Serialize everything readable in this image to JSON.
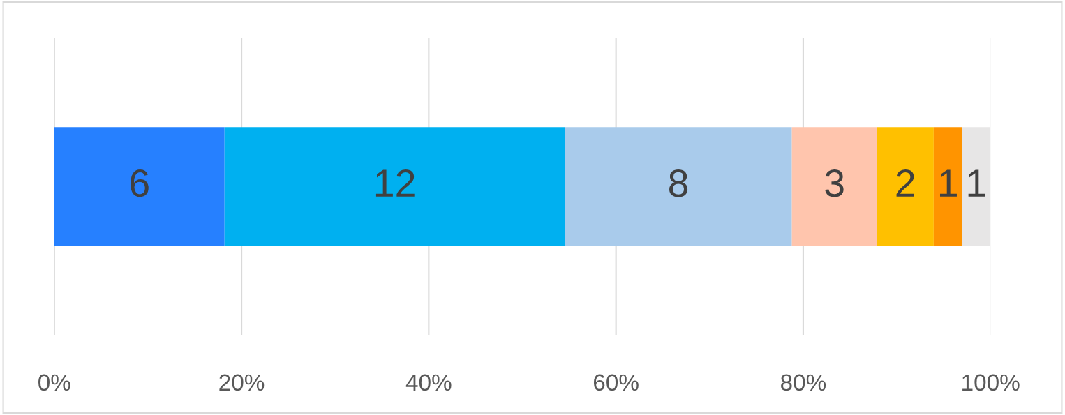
{
  "chart_data": {
    "type": "bar",
    "orientation": "horizontal",
    "stacked": true,
    "data_labels": true,
    "grid": "x",
    "categories": [
      null
    ],
    "xlim": [
      0,
      33
    ],
    "x2lim": [
      0,
      100
    ],
    "x2ticks": [
      {
        "value": 0,
        "label": "0%"
      },
      {
        "value": 20,
        "label": "20%"
      },
      {
        "value": 40,
        "label": "40%"
      },
      {
        "value": 60,
        "label": "60%"
      },
      {
        "value": 80,
        "label": "80%"
      },
      {
        "value": 100,
        "label": "100%"
      }
    ],
    "series": [
      {
        "color": "#2680ff",
        "values": [
          6
        ]
      },
      {
        "color": "#00b0f0",
        "values": [
          12
        ]
      },
      {
        "color": "#a9cbeb",
        "values": [
          8
        ]
      },
      {
        "color": "#ffc5ad",
        "values": [
          3
        ]
      },
      {
        "color": "#ffc000",
        "values": [
          2
        ]
      },
      {
        "color": "#ff9400",
        "values": [
          1
        ]
      },
      {
        "color": "#e7e6e6",
        "values": [
          1
        ]
      }
    ]
  }
}
